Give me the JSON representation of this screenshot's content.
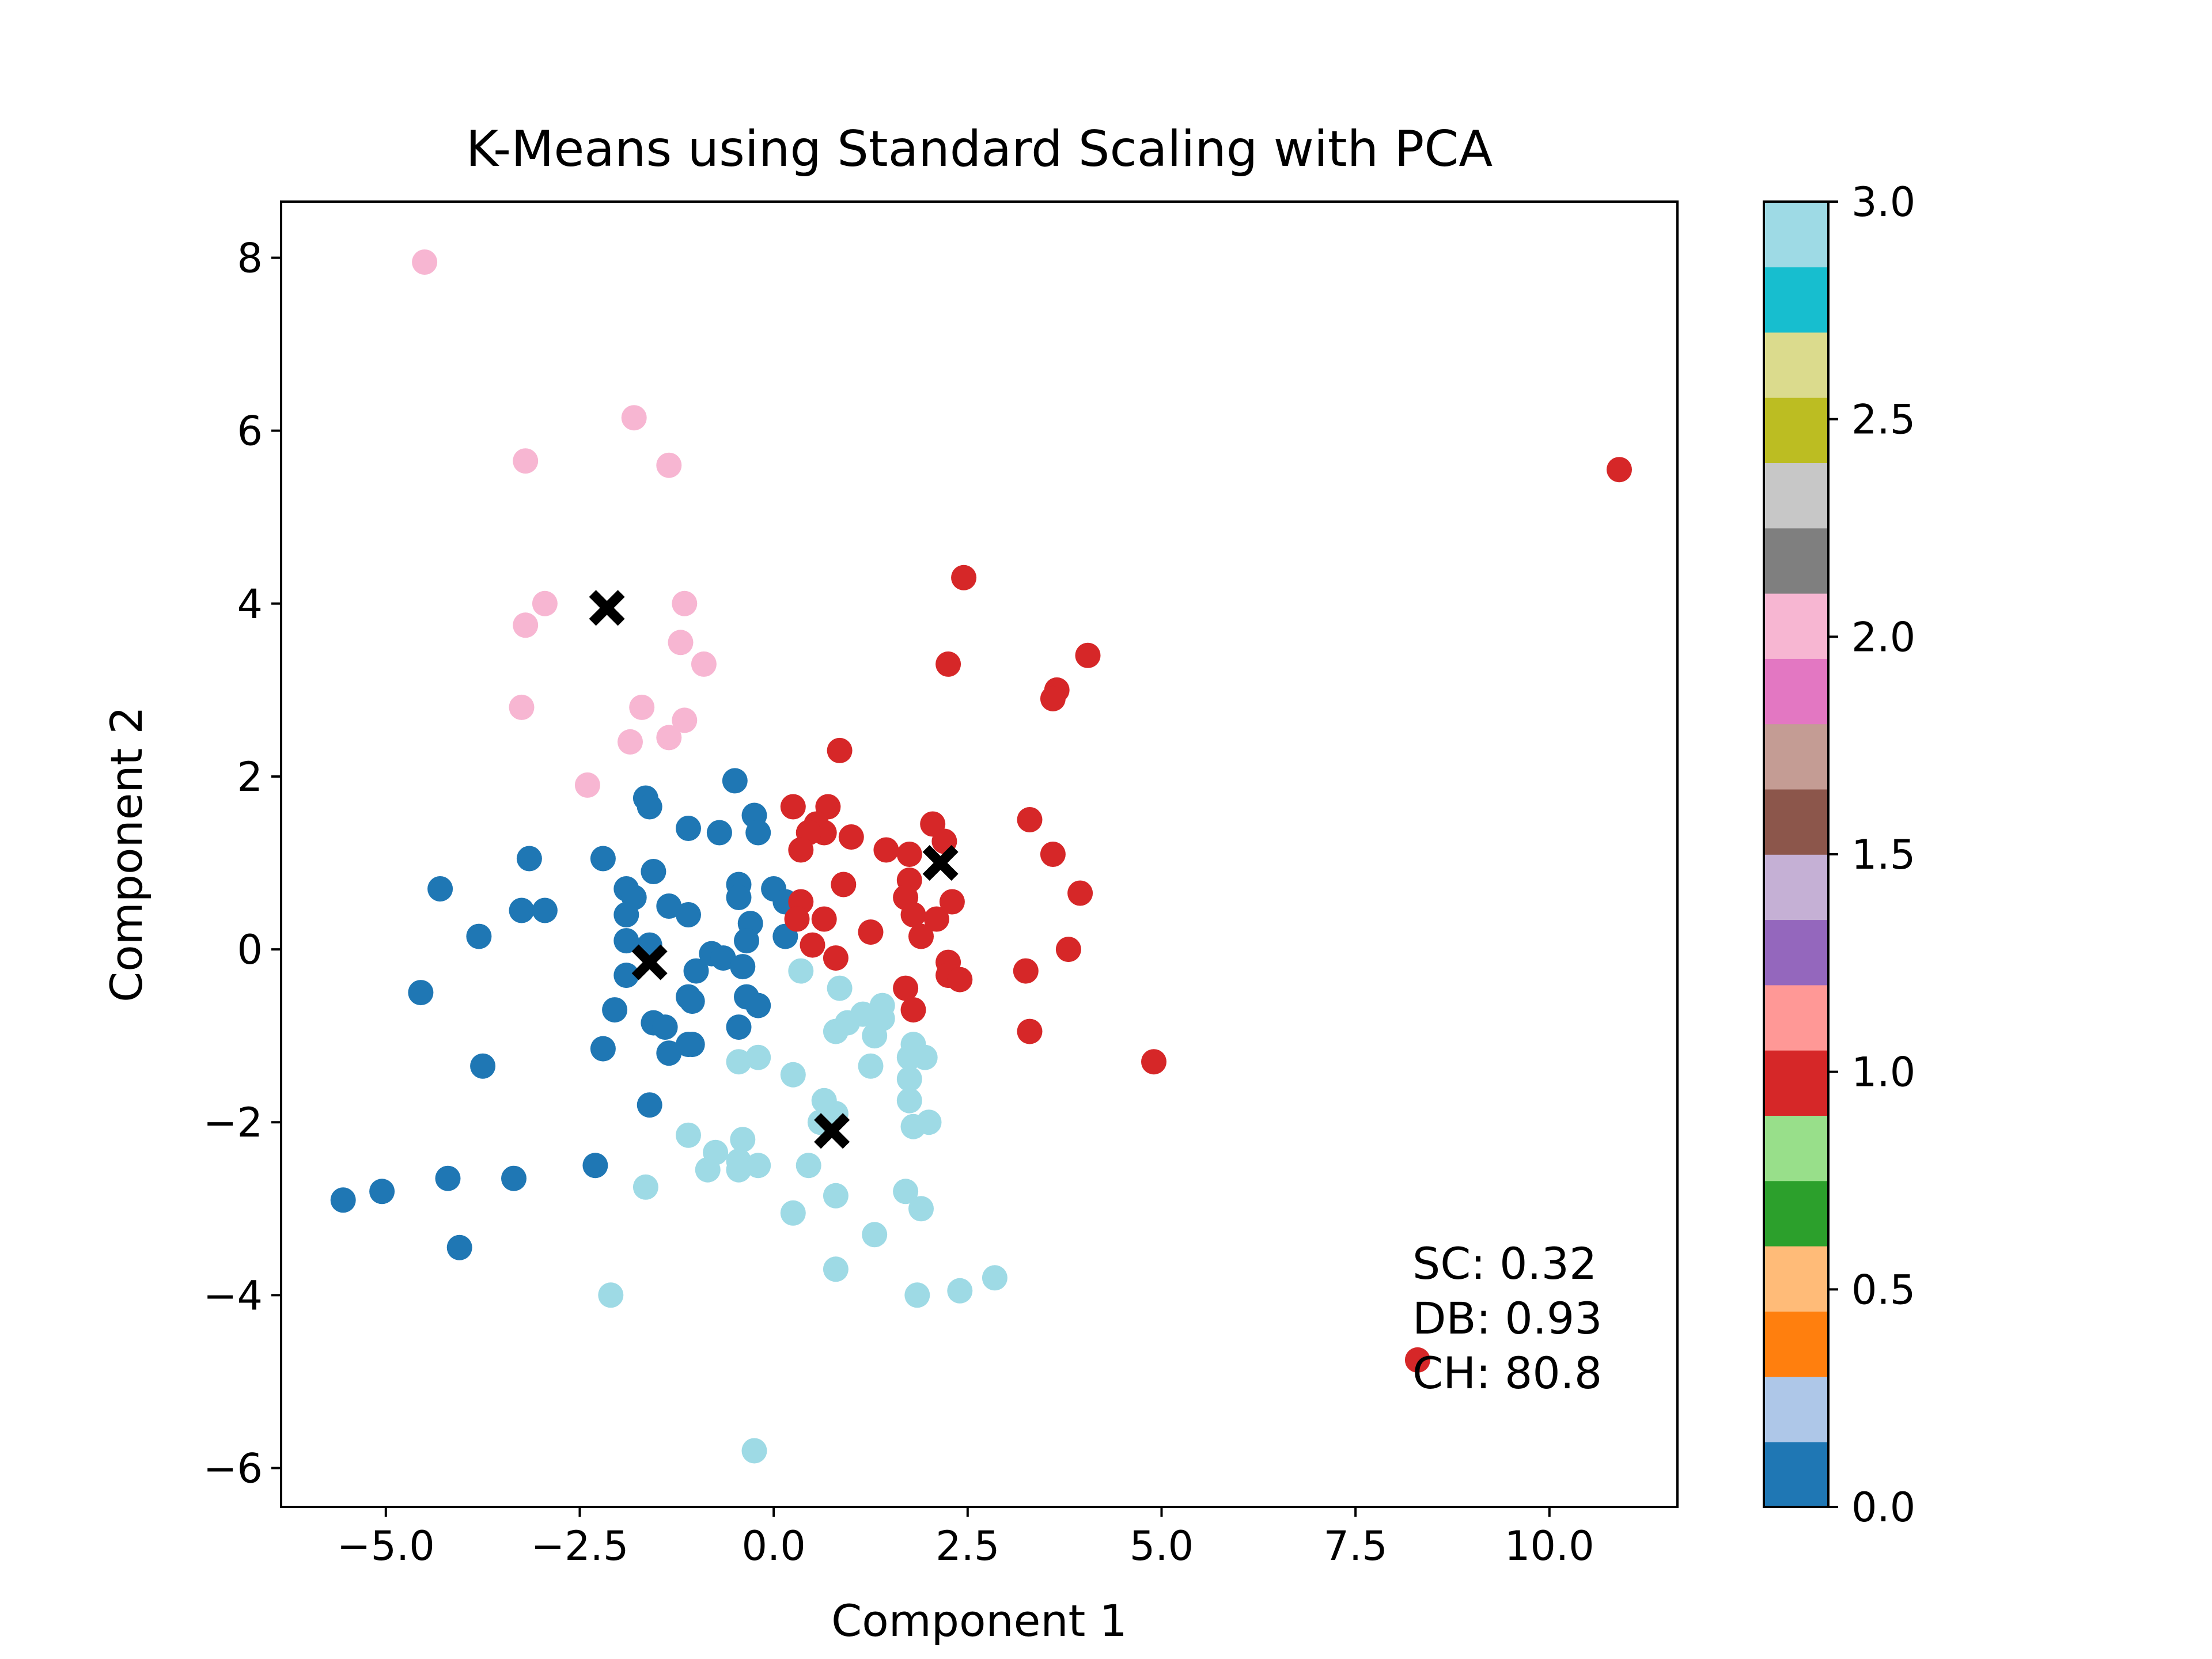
{
  "chart_data": {
    "type": "scatter",
    "title": "K-Means using Standard Scaling with PCA",
    "xlabel": "Component 1",
    "ylabel": "Component 2",
    "xlim": [
      -6.35,
      11.65
    ],
    "ylim": [
      -6.45,
      8.65
    ],
    "xticks": [
      -5.0,
      -2.5,
      0.0,
      2.5,
      5.0,
      7.5,
      10.0
    ],
    "xtick_labels": [
      "−5.0",
      "−2.5",
      "0.0",
      "2.5",
      "5.0",
      "7.5",
      "10.0"
    ],
    "yticks": [
      -6,
      -4,
      -2,
      0,
      2,
      4,
      6,
      8
    ],
    "ytick_labels": [
      "−6",
      "−4",
      "−2",
      "0",
      "2",
      "4",
      "6",
      "8"
    ],
    "grid": false,
    "colormap": "tab20",
    "annotation": [
      "SC: 0.32",
      "DB: 0.93",
      "CH: 80.8"
    ],
    "colorbar": {
      "range": [
        0.0,
        3.0
      ],
      "ticks": [
        0.0,
        0.5,
        1.0,
        1.5,
        2.0,
        2.5,
        3.0
      ],
      "tick_labels": [
        "0.0",
        "0.5",
        "1.0",
        "1.5",
        "2.0",
        "2.5",
        "3.0"
      ],
      "colors": [
        "#1f77b4",
        "#aec7e8",
        "#ff7f0e",
        "#ffbb78",
        "#2ca02c",
        "#98df8a",
        "#d62728",
        "#ff9896",
        "#9467bd",
        "#c5b0d5",
        "#8c564b",
        "#c49c94",
        "#e377c2",
        "#f7b6d2",
        "#7f7f7f",
        "#c7c7c7",
        "#bcbd22",
        "#dbdb8d",
        "#17becf",
        "#9edae5"
      ]
    },
    "series": [
      {
        "cluster": 0,
        "color": "#1f77b4",
        "points": [
          [
            -0.5,
            1.95
          ],
          [
            -1.65,
            1.75
          ],
          [
            -1.6,
            1.65
          ],
          [
            -0.25,
            1.55
          ],
          [
            -1.1,
            1.4
          ],
          [
            -0.7,
            1.35
          ],
          [
            -0.2,
            1.35
          ],
          [
            -3.15,
            1.05
          ],
          [
            -2.2,
            1.05
          ],
          [
            -1.55,
            0.9
          ],
          [
            -4.3,
            0.7
          ],
          [
            -1.9,
            0.7
          ],
          [
            -1.8,
            0.6
          ],
          [
            -0.45,
            0.75
          ],
          [
            -0.45,
            0.6
          ],
          [
            0.0,
            0.7
          ],
          [
            0.15,
            0.55
          ],
          [
            -3.25,
            0.45
          ],
          [
            -2.95,
            0.45
          ],
          [
            -1.35,
            0.5
          ],
          [
            -1.1,
            0.4
          ],
          [
            -1.9,
            0.4
          ],
          [
            -0.3,
            0.3
          ],
          [
            -0.35,
            0.1
          ],
          [
            -3.8,
            0.15
          ],
          [
            -1.6,
            0.05
          ],
          [
            -1.9,
            0.1
          ],
          [
            -0.8,
            -0.05
          ],
          [
            -0.65,
            -0.1
          ],
          [
            -1.0,
            -0.25
          ],
          [
            -0.4,
            -0.2
          ],
          [
            0.15,
            0.15
          ],
          [
            -1.9,
            -0.3
          ],
          [
            -4.55,
            -0.5
          ],
          [
            -1.1,
            -0.55
          ],
          [
            -1.05,
            -0.6
          ],
          [
            -0.35,
            -0.55
          ],
          [
            -0.2,
            -0.65
          ],
          [
            -2.05,
            -0.7
          ],
          [
            -1.55,
            -0.85
          ],
          [
            -1.4,
            -0.9
          ],
          [
            -0.45,
            -0.9
          ],
          [
            -2.2,
            -1.15
          ],
          [
            -1.35,
            -1.2
          ],
          [
            -1.1,
            -1.1
          ],
          [
            -1.05,
            -1.1
          ],
          [
            -3.75,
            -1.35
          ],
          [
            -1.6,
            -1.8
          ],
          [
            -5.55,
            -2.9
          ],
          [
            -5.05,
            -2.8
          ],
          [
            -4.2,
            -2.65
          ],
          [
            -3.35,
            -2.65
          ],
          [
            -2.3,
            -2.5
          ],
          [
            -4.05,
            -3.45
          ]
        ]
      },
      {
        "cluster": 1,
        "color": "#d62728",
        "points": [
          [
            10.9,
            5.55
          ],
          [
            2.45,
            4.3
          ],
          [
            4.05,
            3.4
          ],
          [
            2.25,
            3.3
          ],
          [
            3.65,
            3.0
          ],
          [
            3.6,
            2.9
          ],
          [
            0.85,
            2.3
          ],
          [
            0.25,
            1.65
          ],
          [
            0.7,
            1.65
          ],
          [
            0.55,
            1.45
          ],
          [
            0.65,
            1.35
          ],
          [
            0.45,
            1.35
          ],
          [
            1.0,
            1.3
          ],
          [
            2.05,
            1.45
          ],
          [
            3.3,
            1.5
          ],
          [
            0.35,
            1.15
          ],
          [
            1.45,
            1.15
          ],
          [
            1.75,
            1.1
          ],
          [
            2.2,
            1.25
          ],
          [
            3.6,
            1.1
          ],
          [
            1.75,
            0.8
          ],
          [
            0.9,
            0.75
          ],
          [
            1.7,
            0.6
          ],
          [
            1.8,
            0.4
          ],
          [
            3.95,
            0.65
          ],
          [
            2.3,
            0.55
          ],
          [
            0.35,
            0.55
          ],
          [
            0.3,
            0.35
          ],
          [
            0.65,
            0.35
          ],
          [
            2.1,
            0.35
          ],
          [
            1.25,
            0.2
          ],
          [
            1.9,
            0.15
          ],
          [
            0.5,
            0.05
          ],
          [
            0.8,
            -0.1
          ],
          [
            2.25,
            -0.15
          ],
          [
            2.25,
            -0.3
          ],
          [
            2.4,
            -0.35
          ],
          [
            3.25,
            -0.25
          ],
          [
            3.8,
            0.0
          ],
          [
            1.7,
            -0.45
          ],
          [
            1.8,
            -0.7
          ],
          [
            3.3,
            -0.95
          ],
          [
            4.9,
            -1.3
          ],
          [
            8.3,
            -4.75
          ]
        ]
      },
      {
        "cluster": 2,
        "color": "#f7b6d2",
        "points": [
          [
            -4.5,
            7.95
          ],
          [
            -1.8,
            6.15
          ],
          [
            -1.35,
            5.6
          ],
          [
            -3.2,
            5.65
          ],
          [
            -2.95,
            4.0
          ],
          [
            -3.2,
            3.75
          ],
          [
            -1.15,
            4.0
          ],
          [
            -1.2,
            3.55
          ],
          [
            -0.9,
            3.3
          ],
          [
            -3.25,
            2.8
          ],
          [
            -1.7,
            2.8
          ],
          [
            -1.15,
            2.65
          ],
          [
            -1.35,
            2.45
          ],
          [
            -1.85,
            2.4
          ],
          [
            -2.4,
            1.9
          ]
        ]
      },
      {
        "cluster": 3,
        "color": "#9edae5",
        "points": [
          [
            0.35,
            -0.25
          ],
          [
            0.85,
            -0.45
          ],
          [
            1.4,
            -0.65
          ],
          [
            1.4,
            -0.8
          ],
          [
            1.15,
            -0.75
          ],
          [
            0.8,
            -0.95
          ],
          [
            0.95,
            -0.85
          ],
          [
            1.3,
            -1.0
          ],
          [
            1.8,
            -1.1
          ],
          [
            1.75,
            -1.25
          ],
          [
            1.95,
            -1.25
          ],
          [
            -0.2,
            -1.25
          ],
          [
            -0.45,
            -1.3
          ],
          [
            0.25,
            -1.45
          ],
          [
            1.25,
            -1.35
          ],
          [
            1.75,
            -1.5
          ],
          [
            1.75,
            -1.75
          ],
          [
            0.65,
            -1.75
          ],
          [
            0.8,
            -1.9
          ],
          [
            0.6,
            -2.0
          ],
          [
            1.8,
            -2.05
          ],
          [
            2.0,
            -2.0
          ],
          [
            -1.1,
            -2.15
          ],
          [
            -0.4,
            -2.2
          ],
          [
            -0.75,
            -2.35
          ],
          [
            -0.45,
            -2.45
          ],
          [
            -0.2,
            -2.5
          ],
          [
            -0.85,
            -2.55
          ],
          [
            -0.45,
            -2.55
          ],
          [
            0.45,
            -2.5
          ],
          [
            -1.65,
            -2.75
          ],
          [
            1.7,
            -2.8
          ],
          [
            0.8,
            -2.85
          ],
          [
            1.9,
            -3.0
          ],
          [
            0.25,
            -3.05
          ],
          [
            1.3,
            -3.3
          ],
          [
            0.8,
            -3.7
          ],
          [
            2.85,
            -3.8
          ],
          [
            -2.1,
            -4.0
          ],
          [
            1.85,
            -4.0
          ],
          [
            2.4,
            -3.95
          ],
          [
            -0.25,
            -5.8
          ]
        ]
      }
    ],
    "centroids": [
      [
        -2.15,
        3.95
      ],
      [
        2.15,
        1.0
      ],
      [
        -1.6,
        -0.15
      ],
      [
        0.75,
        -2.1
      ]
    ]
  }
}
